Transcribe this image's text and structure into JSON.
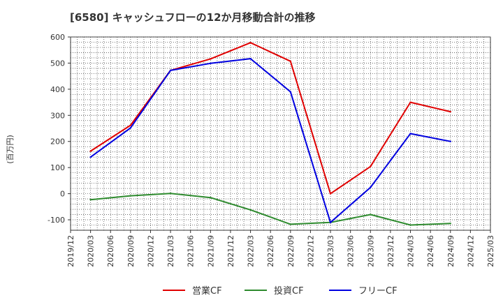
{
  "chart_data": {
    "type": "line",
    "title": "[6580]  キャッシュフローの12か月移動合計の推移",
    "ylabel": "(百万円)",
    "xlabel": "",
    "ylim": [
      -140,
      600
    ],
    "yticks": [
      600,
      500,
      400,
      300,
      200,
      100,
      0,
      -100
    ],
    "x_tick_labels": [
      "2019/12",
      "2020/03",
      "2020/06",
      "2020/09",
      "2020/12",
      "2021/03",
      "2021/06",
      "2021/09",
      "2021/12",
      "2022/03",
      "2022/06",
      "2022/09",
      "2022/12",
      "2023/03",
      "2023/06",
      "2023/09",
      "2023/12",
      "2024/03",
      "2024/06",
      "2024/09",
      "2024/12",
      "2025/03"
    ],
    "grid": true,
    "legend_position": "bottom",
    "series": [
      {
        "name": "営業CF",
        "color": "#e00000",
        "x": [
          "2020/03",
          "2020/09",
          "2021/03",
          "2021/09",
          "2022/03",
          "2022/09",
          "2023/03",
          "2023/09",
          "2024/03",
          "2024/09"
        ],
        "values": [
          163,
          262,
          472,
          516,
          578,
          507,
          0,
          104,
          350,
          314
        ]
      },
      {
        "name": "投資CF",
        "color": "#2e8b2e",
        "x": [
          "2020/03",
          "2020/09",
          "2021/03",
          "2021/09",
          "2022/03",
          "2022/09",
          "2023/03",
          "2023/09",
          "2024/03",
          "2024/09"
        ],
        "values": [
          -23,
          -8,
          1,
          -15,
          -62,
          -117,
          -110,
          -80,
          -120,
          -114
        ]
      },
      {
        "name": "フリーCF",
        "color": "#0000e0",
        "x": [
          "2020/03",
          "2020/09",
          "2021/03",
          "2021/09",
          "2022/03",
          "2022/09",
          "2023/03",
          "2023/09",
          "2024/03",
          "2024/09"
        ],
        "values": [
          140,
          252,
          472,
          499,
          517,
          390,
          -110,
          24,
          230,
          200
        ]
      }
    ]
  }
}
